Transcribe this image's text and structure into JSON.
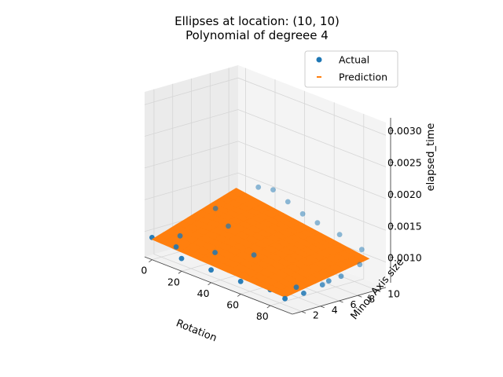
{
  "chart_data": {
    "type": "scatter",
    "projection": "3d",
    "title": [
      "Ellipses at location: (10, 10)",
      "Polynomial of degreee 4"
    ],
    "xlabel": "Rotation",
    "ylabel": "Minor Axis size",
    "zlabel": "elapsed_time",
    "xticks": [
      "0",
      "20",
      "40",
      "60",
      "80"
    ],
    "yticks": [
      "2",
      "4",
      "6",
      "8",
      "10"
    ],
    "zticks": [
      "0.0010",
      "0.0015",
      "0.0020",
      "0.0025",
      "0.0030"
    ],
    "xlim": [
      -5,
      95
    ],
    "ylim": [
      1,
      11
    ],
    "zlim": [
      0.0006,
      0.0032
    ],
    "grid": true,
    "legend": {
      "placement": "top-right",
      "entries": [
        {
          "label": "Actual",
          "color": "#1f77b4",
          "marker": "circle"
        },
        {
          "label": "Prediction",
          "color": "#ff7f0e",
          "marker": "dash"
        }
      ]
    },
    "series": [
      {
        "name": "Actual",
        "color": "#1f77b4",
        "points": [
          {
            "x": 0,
            "y": 1,
            "z": 0.00095
          },
          {
            "x": 0,
            "y": 4,
            "z": 0.00085
          },
          {
            "x": 5,
            "y": 7,
            "z": 0.0012
          },
          {
            "x": 10,
            "y": 9,
            "z": 0.00135
          },
          {
            "x": 15,
            "y": 10,
            "z": 0.0015
          },
          {
            "x": 25,
            "y": 10,
            "z": 0.00155
          },
          {
            "x": 35,
            "y": 10,
            "z": 0.00145
          },
          {
            "x": 45,
            "y": 10,
            "z": 0.00135
          },
          {
            "x": 55,
            "y": 10,
            "z": 0.0013
          },
          {
            "x": 70,
            "y": 10,
            "z": 0.00125
          },
          {
            "x": 85,
            "y": 10,
            "z": 0.00115
          },
          {
            "x": 90,
            "y": 9,
            "z": 0.001
          },
          {
            "x": 90,
            "y": 7,
            "z": 0.0009
          },
          {
            "x": 90,
            "y": 5,
            "z": 0.00085
          },
          {
            "x": 90,
            "y": 3,
            "z": 0.0008
          },
          {
            "x": 90,
            "y": 1,
            "z": 0.0008
          },
          {
            "x": 80,
            "y": 1,
            "z": 0.00085
          },
          {
            "x": 60,
            "y": 1,
            "z": 0.0008
          },
          {
            "x": 40,
            "y": 1,
            "z": 0.0008
          },
          {
            "x": 20,
            "y": 1,
            "z": 0.0008
          },
          {
            "x": 10,
            "y": 2,
            "z": 0.00085
          },
          {
            "x": 30,
            "y": 3,
            "z": 0.0009
          },
          {
            "x": 50,
            "y": 4,
            "z": 0.001
          },
          {
            "x": 70,
            "y": 5,
            "z": 0.00105
          },
          {
            "x": 60,
            "y": 8,
            "z": 0.00115
          },
          {
            "x": 20,
            "y": 6,
            "z": 0.0011
          },
          {
            "x": 85,
            "y": 3,
            "z": 0.00085
          },
          {
            "x": 88,
            "y": 6,
            "z": 0.00085
          }
        ]
      },
      {
        "name": "Prediction",
        "color": "#ff7f0e",
        "surface": {
          "x_range": [
            0,
            90
          ],
          "y_range": [
            1,
            10
          ],
          "z_corners": {
            "x0_y1": 0.00092,
            "x90_y1": 0.00082,
            "x0_y10": 0.00135,
            "x90_y10": 0.00105
          },
          "z_center": 0.00112
        }
      }
    ]
  }
}
